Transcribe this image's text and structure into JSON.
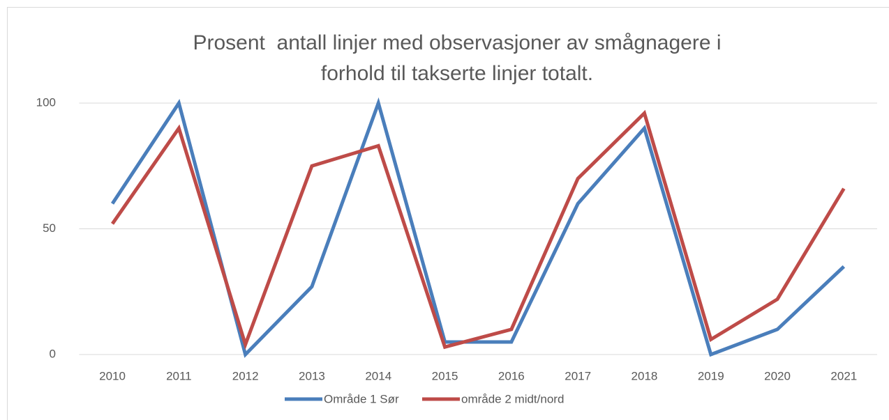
{
  "chart_data": {
    "type": "line",
    "title": "Prosent  antall linjer med observasjoner av smågnagere i forhold til takserte linjer totalt.",
    "categories": [
      "2010",
      "2011",
      "2012",
      "2013",
      "2014",
      "2015",
      "2016",
      "2017",
      "2018",
      "2019",
      "2020",
      "2021"
    ],
    "series": [
      {
        "name": "Område 1 Sør",
        "color": "#4a7ebb",
        "values": [
          60,
          100,
          0,
          27,
          100,
          5,
          5,
          60,
          90,
          0,
          10,
          35
        ]
      },
      {
        "name": "område 2 midt/nord",
        "color": "#be4b48",
        "values": [
          52,
          90,
          4,
          75,
          83,
          3,
          10,
          70,
          96,
          6,
          22,
          66
        ]
      }
    ],
    "ylim": [
      0,
      100
    ],
    "yticks": [
      0,
      50,
      100
    ],
    "grid": true,
    "legend": "bottom"
  }
}
